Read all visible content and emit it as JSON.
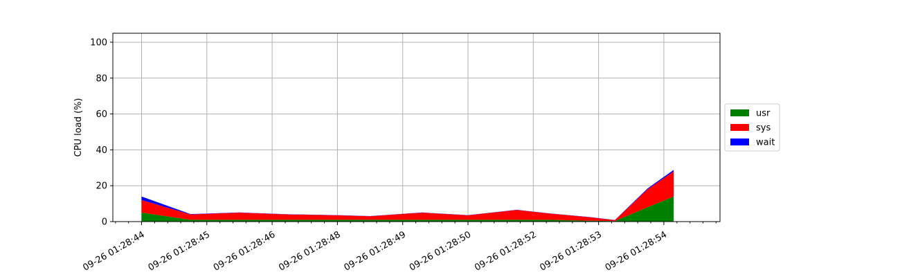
{
  "chart_data": {
    "type": "area",
    "stacked": true,
    "title": "",
    "xlabel": "",
    "ylabel": "CPU load (%)",
    "ylim": [
      0,
      105
    ],
    "yticks": [
      0,
      20,
      40,
      60,
      80,
      100
    ],
    "xlim": [
      -0.44,
      8.86
    ],
    "xticks": [
      0,
      1,
      2,
      3,
      4,
      5,
      6,
      7,
      8
    ],
    "xtick_labels": [
      "09-26 01:28:44",
      "09-26 01:28:45",
      "09-26 01:28:46",
      "09-26 01:28:48",
      "09-26 01:28:49",
      "09-26 01:28:50",
      "09-26 01:28:52",
      "09-26 01:28:53",
      "09-26 01:28:54"
    ],
    "minor_ticks_per_major": 5,
    "grid": true,
    "legend_position": "right-outside",
    "x": [
      0,
      0.75,
      1.5,
      2.25,
      3.0,
      3.5,
      4.3,
      5.0,
      5.75,
      6.25,
      6.85,
      7.25,
      7.75,
      8.15
    ],
    "series": [
      {
        "name": "usr",
        "color": "#008000",
        "values": [
          5,
          1,
          1,
          1,
          1,
          1,
          1,
          1,
          1,
          1,
          0.5,
          0.3,
          8,
          14
        ]
      },
      {
        "name": "sys",
        "color": "#ff0000",
        "values": [
          7,
          3,
          4,
          3,
          2.5,
          2,
          4,
          2.5,
          5.5,
          3.5,
          2,
          0.5,
          10,
          14
        ]
      },
      {
        "name": "wait",
        "color": "#0000ff",
        "values": [
          2,
          0.2,
          0.1,
          0.1,
          0.1,
          0.1,
          0.1,
          0.1,
          0.1,
          0.1,
          0.1,
          0.1,
          0.5,
          0.8
        ]
      }
    ]
  }
}
